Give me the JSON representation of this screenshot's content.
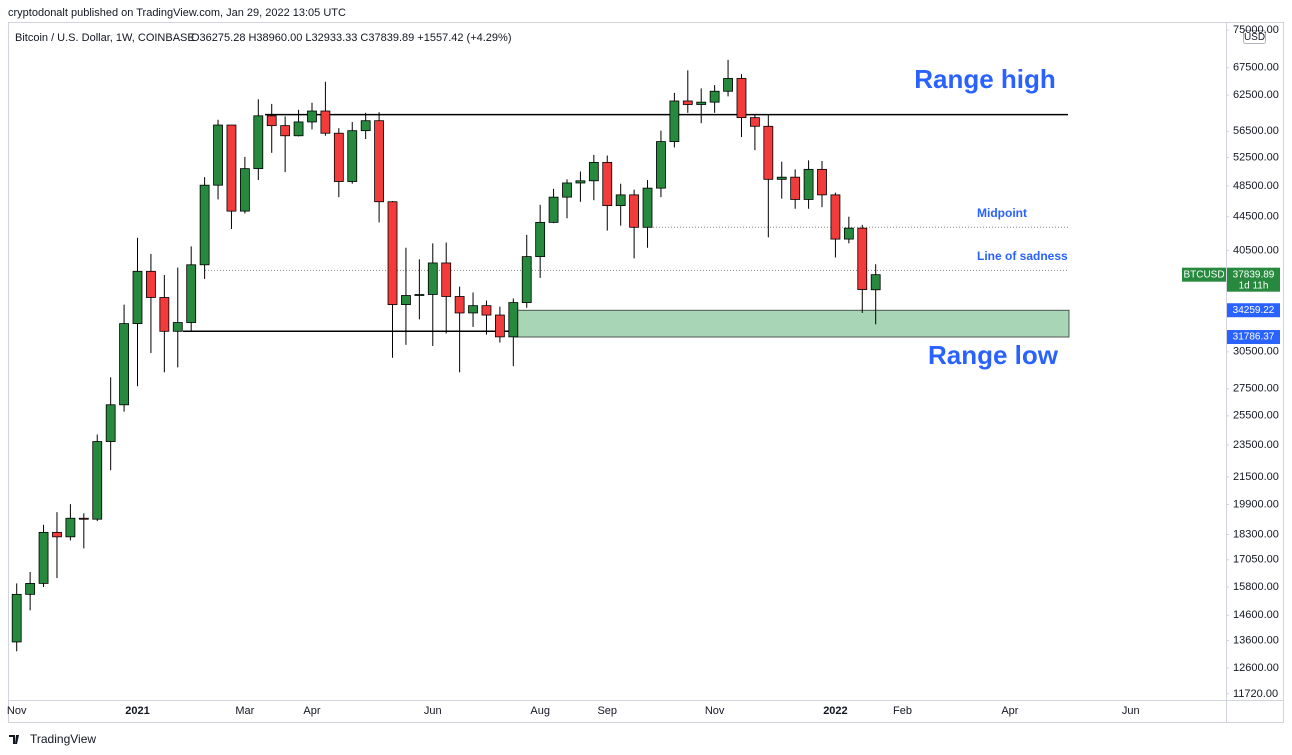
{
  "published": "cryptodonalt published on TradingView.com, Jan 29, 2022 13:05 UTC",
  "footer_logo": "TradingView",
  "chart_data": {
    "type": "candlestick",
    "title": "Bitcoin / U.S. Dollar, 1W, COINBASE",
    "subtitle": "O36275.28 H38960.00 L32933.33 C37839.89 +1557.42 (+4.29%)",
    "currency": "USD",
    "countdown": "1d 11h",
    "log_scale": true,
    "grid": false,
    "up_color": "#26893d",
    "down_color": "#f23b3b",
    "categories": [
      "Nov",
      null,
      null,
      null,
      null,
      null,
      null,
      null,
      null,
      "2021",
      null,
      null,
      null,
      null,
      null,
      null,
      null,
      "Mar",
      null,
      null,
      null,
      null,
      "Apr",
      null,
      null,
      null,
      null,
      null,
      null,
      null,
      null,
      "Jun",
      null,
      null,
      null,
      null,
      null,
      null,
      null,
      "Aug",
      null,
      null,
      null,
      null,
      "Sep",
      null,
      null,
      null,
      null,
      null,
      null,
      null,
      "Nov",
      null,
      null,
      null,
      null,
      null,
      null,
      null,
      null,
      "2022",
      null,
      null,
      null,
      null,
      "Feb",
      null,
      null,
      null,
      null,
      null,
      null,
      null,
      "Apr",
      null,
      null,
      null,
      null,
      null,
      null,
      null,
      null,
      "Jun",
      null,
      null,
      null,
      null,
      null,
      null
    ],
    "series": [
      {
        "name": "BTCUSD",
        "open": [
          13550,
          15480,
          15960,
          18410,
          18180,
          19150,
          19100,
          23730,
          26300,
          33000,
          38200,
          35500,
          32300,
          33100,
          38900,
          48600,
          57500,
          45200,
          50900,
          59000,
          57400,
          55800,
          58000,
          59800,
          56200,
          49100,
          56600,
          58200,
          46400,
          34800,
          35700,
          35800,
          39100,
          35600,
          34000,
          34700,
          33800,
          31800,
          35000,
          39800,
          43800,
          47000,
          48900,
          49200,
          51800,
          45900,
          47300,
          43200,
          48200,
          54900,
          61500,
          60900,
          61300,
          63200,
          65500,
          58700,
          57300,
          49400,
          49700,
          46700,
          50800,
          47300,
          41800,
          43100,
          36275.28,
          null,
          null,
          null,
          null,
          null,
          null,
          null,
          null,
          null,
          null,
          null,
          null,
          null,
          null,
          null,
          null,
          null,
          null,
          null,
          null,
          null,
          null,
          null,
          null,
          null
        ],
        "high": [
          15960,
          16480,
          18800,
          19480,
          19920,
          19420,
          24200,
          28400,
          34800,
          41950,
          40100,
          37800,
          38600,
          40955,
          49700,
          58350,
          57500,
          52600,
          61800,
          61000,
          58900,
          60000,
          61200,
          64900,
          57000,
          58000,
          59500,
          59600,
          46500,
          40800,
          39500,
          41300,
          41400,
          36600,
          36000,
          35200,
          34600,
          35400,
          42300,
          46000,
          48100,
          49400,
          50500,
          52900,
          52800,
          48800,
          48000,
          49300,
          56600,
          62900,
          67000,
          63700,
          64300,
          69000,
          66300,
          59300,
          59100,
          51900,
          50800,
          52100,
          52000,
          47600,
          44500,
          43500,
          38960,
          null,
          null,
          null,
          null,
          null,
          null,
          null,
          null,
          null,
          null,
          null,
          null,
          null,
          null,
          null,
          null,
          null,
          null,
          null,
          null,
          null,
          null,
          null,
          null,
          null
        ],
        "low": [
          13200,
          14800,
          15800,
          16200,
          18000,
          17600,
          19000,
          21900,
          25800,
          27700,
          30400,
          28800,
          29200,
          32300,
          37400,
          46700,
          43000,
          44900,
          49300,
          53200,
          50400,
          55700,
          56800,
          55800,
          47000,
          48800,
          55300,
          43800,
          30000,
          31100,
          33400,
          31000,
          32100,
          28800,
          32700,
          32000,
          31300,
          29300,
          34500,
          37500,
          43700,
          44300,
          46400,
          46600,
          42800,
          43400,
          39600,
          40800,
          47000,
          54000,
          59500,
          57800,
          59500,
          62300,
          55600,
          53600,
          42000,
          46800,
          45500,
          45500,
          45700,
          39700,
          41300,
          34000,
          32933.33,
          null,
          null,
          null,
          null,
          null,
          null,
          null,
          null,
          null,
          null,
          null,
          null,
          null,
          null,
          null,
          null,
          null,
          null,
          null,
          null,
          null,
          null,
          null,
          null,
          null
        ],
        "close": [
          15480,
          15960,
          18410,
          18180,
          19150,
          19100,
          23730,
          26300,
          33000,
          38200,
          35500,
          32300,
          33100,
          38900,
          48600,
          57500,
          45200,
          50900,
          59000,
          57400,
          55800,
          58000,
          59800,
          56200,
          49100,
          56600,
          58200,
          46400,
          34800,
          35700,
          35800,
          39100,
          35600,
          34000,
          34700,
          33800,
          31800,
          35000,
          39800,
          43800,
          47000,
          48900,
          49200,
          51800,
          45900,
          47300,
          43200,
          48200,
          54900,
          61500,
          60900,
          61300,
          63200,
          65500,
          58700,
          57300,
          49400,
          49700,
          46700,
          50800,
          47300,
          41800,
          43100,
          36300,
          37839.89,
          null,
          null,
          null,
          null,
          null,
          null,
          null,
          null,
          null,
          null,
          null,
          null,
          null,
          null,
          null,
          null,
          null,
          null,
          null,
          null,
          null,
          null,
          null,
          null,
          null
        ]
      }
    ],
    "ylim": [
      11520,
      76700
    ],
    "yticks": [
      {
        "value": 75000,
        "label": "75000.00"
      },
      {
        "value": 67500,
        "label": "67500.00"
      },
      {
        "value": 62500,
        "label": "62500.00"
      },
      {
        "value": 56500,
        "label": "56500.00"
      },
      {
        "value": 52500,
        "label": "52500.00"
      },
      {
        "value": 48500,
        "label": "48500.00"
      },
      {
        "value": 44500,
        "label": "44500.00"
      },
      {
        "value": 40500,
        "label": "40500.00"
      },
      {
        "value": 30500,
        "label": "30500.00"
      },
      {
        "value": 27500,
        "label": "27500.00"
      },
      {
        "value": 25500,
        "label": "25500.00"
      },
      {
        "value": 23500,
        "label": "23500.00"
      },
      {
        "value": 21500,
        "label": "21500.00"
      },
      {
        "value": 19900,
        "label": "19900.00"
      },
      {
        "value": 18300,
        "label": "18300.00"
      },
      {
        "value": 17050,
        "label": "17050.00"
      },
      {
        "value": 15800,
        "label": "15800.00"
      },
      {
        "value": 14600,
        "label": "14600.00"
      },
      {
        "value": 13600,
        "label": "13600.00"
      },
      {
        "value": 12600,
        "label": "12600.00"
      },
      {
        "value": 11720,
        "label": "11720.00"
      }
    ],
    "zone": {
      "top": 34259.22,
      "bottom": 31786.37,
      "color": "#a8d5b5",
      "tag_color": "#2962ff"
    },
    "annotations": [
      {
        "text": "Range high",
        "price": 59200,
        "style": "solid"
      },
      {
        "text": "Range low",
        "price": 32300,
        "style": "solid"
      },
      {
        "text": "Midpoint",
        "price": 43200,
        "style": "dotted"
      },
      {
        "text": "Line of sadness",
        "price": 38300,
        "style": "dotted"
      }
    ],
    "annotation_color": "#2962ff"
  }
}
